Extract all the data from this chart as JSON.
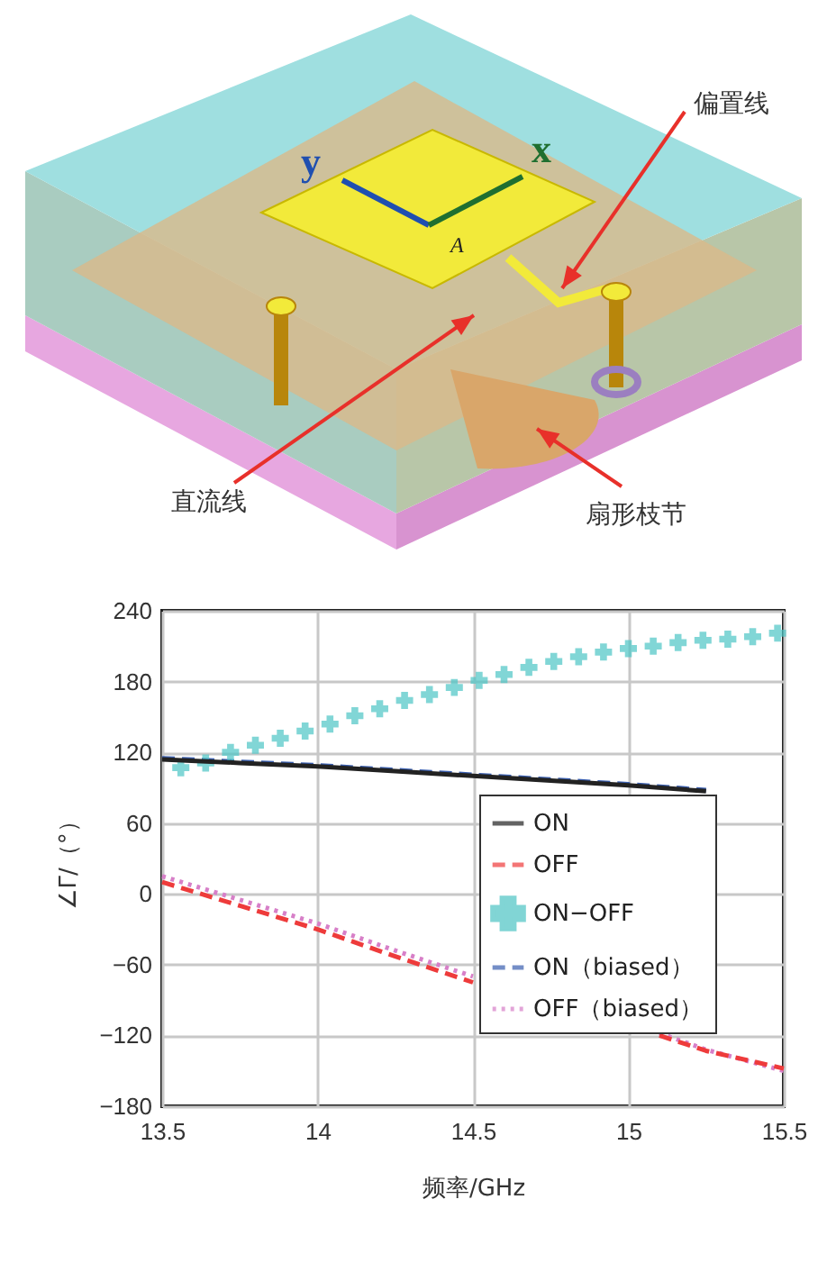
{
  "chart_data": {
    "type": "line",
    "xlabel": "频率/GHz",
    "ylabel": "∠Γ/（°）",
    "xlim": [
      13.5,
      15.5
    ],
    "xticks": [
      13.5,
      14,
      14.5,
      15,
      15.5
    ],
    "ylim": [
      -180,
      240
    ],
    "yticks": [
      -180,
      -120,
      -60,
      0,
      60,
      120,
      180,
      240
    ],
    "grid": true,
    "legend": "bottom right",
    "annotations": [
      "偏置线",
      "直流线",
      "扇形枝节",
      "y",
      "x",
      "A"
    ],
    "series": [
      {
        "name": "ON",
        "color": "#222222",
        "line_style": "solid",
        "x": [
          13.5,
          13.75,
          14,
          14.25,
          14.5,
          14.75,
          15,
          15.25
        ],
        "values": [
          114,
          111,
          108,
          104,
          100,
          96,
          92,
          87
        ]
      },
      {
        "name": "OFF",
        "color": "#ee3b3b",
        "line_style": "dashed",
        "x": [
          13.5,
          13.75,
          14,
          14.25,
          14.5,
          14.75,
          15.1,
          15.25,
          15.5
        ],
        "values": [
          10,
          -10,
          -30,
          -53,
          -75,
          null,
          -120,
          -133,
          -148
        ]
      },
      {
        "name": "ON−OFF",
        "type": "scatter",
        "marker": "cross",
        "color": "#4cc4c4",
        "x": [
          13.56,
          13.64,
          13.72,
          13.8,
          13.88,
          13.96,
          14.04,
          14.12,
          14.2,
          14.28,
          14.36,
          14.44,
          14.52,
          14.6,
          14.68,
          14.76,
          14.84,
          14.92,
          15,
          15.08,
          15.16,
          15.24,
          15.32,
          15.4,
          15.48
        ],
        "values": [
          107,
          111,
          120,
          126,
          132,
          138,
          144,
          151,
          157,
          164,
          169,
          175,
          181,
          186,
          192,
          197,
          201,
          205,
          208,
          210,
          213,
          215,
          216,
          218,
          221
        ]
      },
      {
        "name": "ON（biased）",
        "color": "#3a5fb0",
        "line_style": "dashed",
        "x": [
          13.5,
          13.75,
          14,
          14.25,
          14.5,
          14.75,
          15,
          15.25
        ],
        "values": [
          115,
          112,
          109,
          105,
          101,
          97,
          93,
          88
        ]
      },
      {
        "name": "OFF（biased）",
        "color": "#d77fc8",
        "line_style": "dotted",
        "x": [
          13.5,
          13.75,
          14,
          14.25,
          14.5,
          14.75,
          15.1,
          15.25,
          15.5
        ],
        "values": [
          15,
          -5,
          -25,
          -48,
          -70,
          null,
          -118,
          -132,
          -150
        ]
      }
    ]
  }
}
